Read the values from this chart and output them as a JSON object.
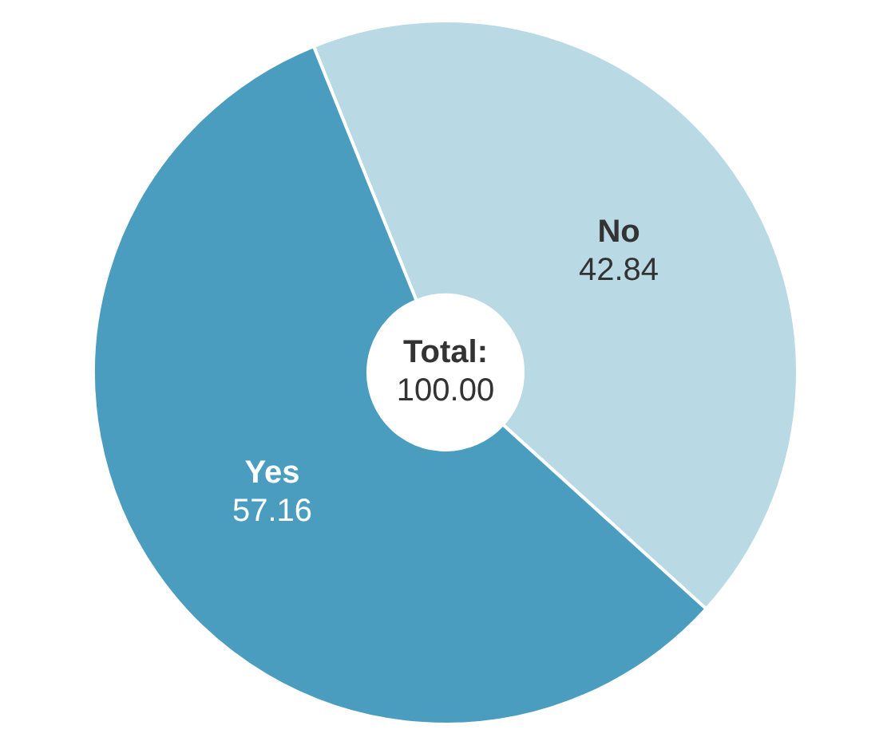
{
  "chart_data": {
    "type": "donut",
    "categories": [
      "No",
      "Yes"
    ],
    "values": [
      42.84,
      57.16
    ],
    "colors": [
      "#b9d9e5",
      "#4b9dc0"
    ],
    "data_labels": true,
    "annotations": [
      "Total:",
      "100.00"
    ],
    "legend": false
  }
}
